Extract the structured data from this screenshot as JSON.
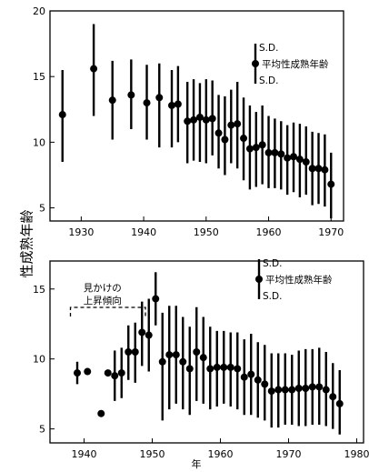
{
  "figure": {
    "ylabel": "性成熟年齢",
    "xlabel": "年"
  },
  "chart_data": [
    {
      "type": "scatter",
      "errorbars": true,
      "xlim": [
        1925,
        1972
      ],
      "ylim": [
        4,
        20
      ],
      "xticks": [
        1930,
        1940,
        1950,
        1960,
        1970
      ],
      "yticks": [
        5,
        10,
        15,
        20
      ],
      "legend": {
        "position": "top-right",
        "sd_top": "S.D.",
        "mean": "平均性成熟年齢",
        "sd_bottom": "S.D."
      },
      "series": [
        {
          "name": "平均性成熟年齢",
          "points": [
            {
              "x": 1927,
              "y": 12.1,
              "lo": 8.5,
              "hi": 15.5
            },
            {
              "x": 1932,
              "y": 15.6,
              "lo": 12.0,
              "hi": 19.0
            },
            {
              "x": 1935,
              "y": 13.2,
              "lo": 10.2,
              "hi": 16.2
            },
            {
              "x": 1938,
              "y": 13.6,
              "lo": 11.0,
              "hi": 16.3
            },
            {
              "x": 1940.5,
              "y": 13.0,
              "lo": 10.2,
              "hi": 15.9
            },
            {
              "x": 1942.5,
              "y": 13.4,
              "lo": 9.6,
              "hi": 16.0
            },
            {
              "x": 1944.5,
              "y": 12.8,
              "lo": 9.6,
              "hi": 15.5
            },
            {
              "x": 1945.5,
              "y": 12.9,
              "lo": 10.0,
              "hi": 15.8
            },
            {
              "x": 1947,
              "y": 11.6,
              "lo": 8.4,
              "hi": 14.6
            },
            {
              "x": 1948,
              "y": 11.7,
              "lo": 8.6,
              "hi": 14.8
            },
            {
              "x": 1949,
              "y": 11.9,
              "lo": 8.5,
              "hi": 14.5
            },
            {
              "x": 1950,
              "y": 11.7,
              "lo": 8.4,
              "hi": 14.8
            },
            {
              "x": 1951,
              "y": 11.8,
              "lo": 9.0,
              "hi": 14.7
            },
            {
              "x": 1952,
              "y": 10.7,
              "lo": 8.0,
              "hi": 13.6
            },
            {
              "x": 1953,
              "y": 10.2,
              "lo": 7.5,
              "hi": 13.5
            },
            {
              "x": 1954,
              "y": 11.3,
              "lo": 8.4,
              "hi": 14.0
            },
            {
              "x": 1955,
              "y": 11.4,
              "lo": 8.0,
              "hi": 14.6
            },
            {
              "x": 1956,
              "y": 10.3,
              "lo": 7.1,
              "hi": 13.4
            },
            {
              "x": 1957,
              "y": 9.5,
              "lo": 6.4,
              "hi": 12.8
            },
            {
              "x": 1958,
              "y": 9.6,
              "lo": 6.6,
              "hi": 12.3
            },
            {
              "x": 1959,
              "y": 9.8,
              "lo": 6.8,
              "hi": 12.8
            },
            {
              "x": 1960,
              "y": 9.2,
              "lo": 6.5,
              "hi": 12.0
            },
            {
              "x": 1961,
              "y": 9.2,
              "lo": 6.5,
              "hi": 11.8
            },
            {
              "x": 1962,
              "y": 9.1,
              "lo": 6.4,
              "hi": 11.6
            },
            {
              "x": 1963,
              "y": 8.8,
              "lo": 6.0,
              "hi": 11.3
            },
            {
              "x": 1964,
              "y": 8.9,
              "lo": 6.2,
              "hi": 11.5
            },
            {
              "x": 1965,
              "y": 8.7,
              "lo": 5.8,
              "hi": 11.4
            },
            {
              "x": 1966,
              "y": 8.5,
              "lo": 6.0,
              "hi": 11.2
            },
            {
              "x": 1967,
              "y": 8.0,
              "lo": 5.2,
              "hi": 10.8
            },
            {
              "x": 1968,
              "y": 8.0,
              "lo": 5.3,
              "hi": 10.7
            },
            {
              "x": 1969,
              "y": 7.9,
              "lo": 5.1,
              "hi": 10.6
            },
            {
              "x": 1970,
              "y": 6.8,
              "lo": 4.2,
              "hi": 9.2
            }
          ]
        }
      ]
    },
    {
      "type": "scatter",
      "errorbars": true,
      "xlim": [
        1935,
        1981
      ],
      "ylim": [
        4,
        17
      ],
      "xticks": [
        1940,
        1950,
        1960,
        1970,
        1980
      ],
      "yticks": [
        5,
        10,
        15
      ],
      "legend": {
        "position": "top-right",
        "sd_top": "S.D.",
        "mean": "平均性成熟年齢",
        "sd_bottom": "S.D."
      },
      "annotation": {
        "line1": "見かけの",
        "line2": "上昇傾向",
        "x_from": 1938,
        "x_to": 1949
      },
      "series": [
        {
          "name": "平均性成熟年齢",
          "points": [
            {
              "x": 1939,
              "y": 9.0,
              "lo": 8.2,
              "hi": 9.8
            },
            {
              "x": 1940.5,
              "y": 9.1
            },
            {
              "x": 1942.5,
              "y": 6.1
            },
            {
              "x": 1943.5,
              "y": 9.0
            },
            {
              "x": 1944.5,
              "y": 8.8,
              "lo": 7.0,
              "hi": 10.6
            },
            {
              "x": 1945.5,
              "y": 9.0,
              "lo": 7.2,
              "hi": 10.8
            },
            {
              "x": 1946.5,
              "y": 10.5,
              "lo": 8.5,
              "hi": 12.4
            },
            {
              "x": 1947.5,
              "y": 10.5,
              "lo": 8.3,
              "hi": 12.6
            },
            {
              "x": 1948.5,
              "y": 11.9,
              "lo": 9.5,
              "hi": 14.1
            },
            {
              "x": 1949.5,
              "y": 11.7,
              "lo": 9.1,
              "hi": 14.3
            },
            {
              "x": 1950.5,
              "y": 14.3,
              "lo": 12.4,
              "hi": 16.2
            },
            {
              "x": 1951.5,
              "y": 9.8,
              "lo": 5.6,
              "hi": 13.3
            },
            {
              "x": 1952.5,
              "y": 10.3,
              "lo": 6.4,
              "hi": 13.8
            },
            {
              "x": 1953.5,
              "y": 10.3,
              "lo": 6.8,
              "hi": 13.8
            },
            {
              "x": 1954.5,
              "y": 9.8,
              "lo": 6.4,
              "hi": 13.0
            },
            {
              "x": 1955.5,
              "y": 9.3,
              "lo": 6.0,
              "hi": 12.3
            },
            {
              "x": 1956.5,
              "y": 10.5,
              "lo": 7.0,
              "hi": 13.7
            },
            {
              "x": 1957.5,
              "y": 10.1,
              "lo": 6.8,
              "hi": 13.0
            },
            {
              "x": 1958.5,
              "y": 9.3,
              "lo": 6.4,
              "hi": 12.3
            },
            {
              "x": 1959.5,
              "y": 9.4,
              "lo": 6.6,
              "hi": 12.0
            },
            {
              "x": 1960.5,
              "y": 9.4,
              "lo": 6.8,
              "hi": 12.0
            },
            {
              "x": 1961.5,
              "y": 9.4,
              "lo": 6.6,
              "hi": 11.9
            },
            {
              "x": 1962.5,
              "y": 9.3,
              "lo": 6.4,
              "hi": 11.9
            },
            {
              "x": 1963.5,
              "y": 8.7,
              "lo": 6.0,
              "hi": 11.4
            },
            {
              "x": 1964.5,
              "y": 8.9,
              "lo": 6.0,
              "hi": 11.8
            },
            {
              "x": 1965.5,
              "y": 8.5,
              "lo": 5.8,
              "hi": 11.2
            },
            {
              "x": 1966.5,
              "y": 8.2,
              "lo": 5.6,
              "hi": 11.0
            },
            {
              "x": 1967.5,
              "y": 7.7,
              "lo": 5.1,
              "hi": 10.4
            },
            {
              "x": 1968.5,
              "y": 7.8,
              "lo": 5.1,
              "hi": 10.4
            },
            {
              "x": 1969.5,
              "y": 7.8,
              "lo": 5.3,
              "hi": 10.4
            },
            {
              "x": 1970.5,
              "y": 7.8,
              "lo": 5.3,
              "hi": 10.3
            },
            {
              "x": 1971.5,
              "y": 7.9,
              "lo": 5.2,
              "hi": 10.6
            },
            {
              "x": 1972.5,
              "y": 7.9,
              "lo": 5.2,
              "hi": 10.7
            },
            {
              "x": 1973.5,
              "y": 8.0,
              "lo": 5.3,
              "hi": 10.7
            },
            {
              "x": 1974.5,
              "y": 8.0,
              "lo": 5.3,
              "hi": 10.8
            },
            {
              "x": 1975.5,
              "y": 7.8,
              "lo": 5.2,
              "hi": 10.5
            },
            {
              "x": 1976.5,
              "y": 7.3,
              "lo": 5.0,
              "hi": 9.7
            },
            {
              "x": 1977.5,
              "y": 6.8,
              "lo": 4.6,
              "hi": 9.2
            }
          ]
        }
      ]
    }
  ]
}
